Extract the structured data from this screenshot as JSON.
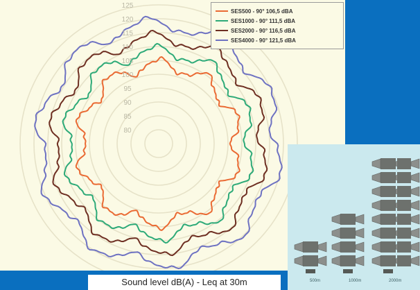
{
  "chart_data": {
    "type": "polar-line",
    "title": "",
    "radial_ticks": [
      "80",
      "85",
      "90",
      "95",
      "100",
      "105",
      "110",
      "115",
      "120",
      "125"
    ],
    "radial_range": [
      75,
      125
    ],
    "grid": true,
    "legend_position": "top-right",
    "series": [
      {
        "name": "SES500 - 90° 106,5 dBA",
        "color": "#ea6a33",
        "avg_level": 103.3,
        "lobes": 10,
        "lobe_amplitude": 2.2
      },
      {
        "name": "SES1000 - 90° 111,5 dBA",
        "color": "#2daa78",
        "avg_level": 108.1,
        "lobes": 10,
        "lobe_amplitude": 2.1
      },
      {
        "name": "SES2000 - 90° 116,5 dBA",
        "color": "#6e2f22",
        "avg_level": 112.9,
        "lobes": 10,
        "lobe_amplitude": 2.1
      },
      {
        "name": "SES4000 - 90° 121,5 dBA",
        "color": "#6e72c2",
        "avg_level": 117.9,
        "lobes": 10,
        "lobe_amplitude": 2.3
      }
    ]
  },
  "caption": "Sound level dB(A) - Leq at 30m",
  "photo": {
    "labels": [
      "500m",
      "1000m",
      "2000m"
    ]
  }
}
